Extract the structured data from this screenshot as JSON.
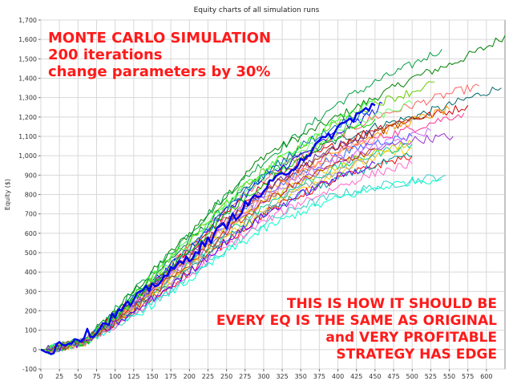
{
  "chart_data": {
    "type": "line",
    "title": "Equity charts of all simulation runs",
    "xlabel": "",
    "ylabel": "Equity ($)",
    "xlim": [
      0,
      625
    ],
    "ylim": [
      -100,
      1700
    ],
    "x_ticks": [
      0,
      25,
      50,
      75,
      100,
      125,
      150,
      175,
      200,
      225,
      250,
      275,
      300,
      325,
      350,
      375,
      400,
      425,
      450,
      475,
      500,
      525,
      550,
      575,
      600
    ],
    "x_tick_labels": [
      "0",
      "25",
      "50",
      "75",
      "100",
      "125",
      "150",
      "175",
      "200",
      "225",
      "250",
      "275",
      "300",
      "325",
      "350",
      "375",
      "400",
      "425",
      "450",
      "475",
      "500",
      "525",
      "550",
      "575",
      "600"
    ],
    "y_ticks": [
      -100,
      0,
      100,
      200,
      300,
      400,
      500,
      600,
      700,
      800,
      900,
      1000,
      1100,
      1200,
      1300,
      1400,
      1500,
      1600,
      1700
    ],
    "y_tick_labels": [
      "-100",
      "0",
      "100",
      "200",
      "300",
      "400",
      "500",
      "600",
      "700",
      "800",
      "900",
      "1,000",
      "1,100",
      "1,200",
      "1,300",
      "1,400",
      "1,500",
      "1,600",
      "1,700"
    ],
    "grid": true,
    "series_count": 200,
    "series": [
      {
        "color": "#008000",
        "x": [
          0,
          10,
          60,
          125,
          200,
          250,
          300,
          350,
          400,
          450,
          500,
          550,
          600,
          625
        ],
        "y": [
          0,
          0,
          40,
          300,
          600,
          800,
          1000,
          1100,
          1200,
          1300,
          1400,
          1470,
          1560,
          1620
        ]
      },
      {
        "color": "#006666",
        "x": [
          0,
          10,
          60,
          125,
          200,
          250,
          300,
          350,
          400,
          450,
          500,
          550,
          600,
          620
        ],
        "y": [
          0,
          0,
          40,
          280,
          560,
          740,
          900,
          1000,
          1080,
          1150,
          1200,
          1260,
          1330,
          1350
        ]
      },
      {
        "color": "#00a040",
        "x": [
          0,
          10,
          60,
          125,
          200,
          250,
          300,
          350,
          400,
          450,
          500,
          540
        ],
        "y": [
          0,
          0,
          50,
          300,
          600,
          800,
          970,
          1120,
          1270,
          1380,
          1470,
          1550
        ]
      },
      {
        "color": "#ff6060",
        "x": [
          0,
          10,
          60,
          125,
          200,
          250,
          300,
          350,
          400,
          450,
          500,
          550,
          590
        ],
        "y": [
          0,
          0,
          40,
          260,
          530,
          720,
          880,
          1000,
          1100,
          1200,
          1260,
          1320,
          1360
        ]
      },
      {
        "color": "#cc0000",
        "x": [
          0,
          10,
          60,
          125,
          200,
          250,
          300,
          350,
          400,
          450,
          500,
          550,
          575
        ],
        "y": [
          0,
          0,
          40,
          260,
          520,
          700,
          850,
          970,
          1060,
          1140,
          1190,
          1230,
          1260
        ]
      },
      {
        "color": "#ff3399",
        "x": [
          0,
          10,
          60,
          125,
          200,
          250,
          300,
          350,
          400,
          450,
          500,
          550,
          570
        ],
        "y": [
          0,
          0,
          40,
          240,
          500,
          680,
          820,
          930,
          1020,
          1090,
          1140,
          1200,
          1220
        ]
      },
      {
        "color": "#9933cc",
        "x": [
          0,
          10,
          60,
          125,
          200,
          250,
          300,
          350,
          400,
          450,
          500,
          555
        ],
        "y": [
          0,
          0,
          40,
          220,
          450,
          620,
          760,
          870,
          960,
          1030,
          1080,
          1100
        ]
      },
      {
        "color": "#33cccc",
        "x": [
          0,
          10,
          60,
          125,
          200,
          250,
          300,
          350,
          400,
          450,
          500,
          545
        ],
        "y": [
          0,
          0,
          40,
          180,
          370,
          520,
          650,
          740,
          800,
          840,
          870,
          900
        ]
      },
      {
        "color": "#ff9900",
        "x": [
          0,
          10,
          60,
          125,
          200,
          250,
          300,
          350,
          400,
          450,
          500,
          550
        ],
        "y": [
          0,
          0,
          40,
          230,
          470,
          640,
          800,
          920,
          1020,
          1110,
          1180,
          1240
        ]
      },
      {
        "color": "#0000ff",
        "x": [
          0,
          10,
          60,
          125,
          200,
          250,
          300,
          350,
          400,
          450,
          460
        ],
        "y": [
          0,
          0,
          40,
          250,
          520,
          720,
          880,
          1000,
          1120,
          1230,
          1270
        ]
      },
      {
        "color": "#3366ff",
        "x": [
          0,
          10,
          60,
          125,
          200,
          250,
          300,
          350,
          400,
          450,
          500
        ],
        "y": [
          0,
          0,
          40,
          230,
          470,
          650,
          800,
          910,
          1000,
          1070,
          1100
        ]
      },
      {
        "color": "#66cc00",
        "x": [
          0,
          10,
          60,
          125,
          200,
          250,
          300,
          350,
          400,
          450,
          500,
          530
        ],
        "y": [
          0,
          0,
          40,
          270,
          560,
          760,
          920,
          1050,
          1170,
          1270,
          1330,
          1380
        ]
      },
      {
        "color": "#ffcc00",
        "x": [
          0,
          10,
          60,
          125,
          200,
          250,
          300,
          350,
          400,
          450,
          500
        ],
        "y": [
          0,
          0,
          40,
          200,
          420,
          580,
          720,
          830,
          920,
          990,
          1040
        ]
      },
      {
        "color": "#00cc99",
        "x": [
          0,
          10,
          60,
          125,
          200,
          250,
          300,
          350,
          400,
          450,
          500
        ],
        "y": [
          0,
          0,
          40,
          210,
          440,
          600,
          740,
          850,
          940,
          1010,
          1060
        ]
      },
      {
        "color": "#993300",
        "x": [
          0,
          10,
          60,
          125,
          200,
          250,
          300,
          350,
          400,
          450,
          500,
          520
        ],
        "y": [
          0,
          0,
          40,
          240,
          490,
          670,
          820,
          940,
          1040,
          1120,
          1180,
          1200
        ]
      },
      {
        "color": "#cc66ff",
        "x": [
          0,
          10,
          60,
          125,
          200,
          250,
          300,
          350,
          400,
          450,
          500,
          525
        ],
        "y": [
          0,
          0,
          40,
          220,
          460,
          630,
          780,
          890,
          980,
          1050,
          1100,
          1130
        ]
      },
      {
        "color": "#ff0000",
        "x": [
          0,
          10,
          60,
          125,
          200,
          250,
          300,
          350,
          400,
          450,
          500
        ],
        "y": [
          0,
          0,
          40,
          190,
          400,
          560,
          700,
          800,
          880,
          950,
          1000
        ]
      },
      {
        "color": "#009999",
        "x": [
          0,
          10,
          60,
          125,
          200,
          250,
          300,
          350,
          400,
          450,
          500
        ],
        "y": [
          0,
          0,
          40,
          200,
          410,
          570,
          700,
          800,
          880,
          950,
          1000
        ]
      },
      {
        "color": "#66ff66",
        "x": [
          0,
          10,
          60,
          125,
          200,
          250,
          300,
          350,
          400,
          450,
          500
        ],
        "y": [
          0,
          0,
          40,
          260,
          540,
          730,
          890,
          1020,
          1120,
          1200,
          1270
        ]
      },
      {
        "color": "#ff66cc",
        "x": [
          0,
          10,
          60,
          125,
          200,
          250,
          300,
          350,
          400,
          450,
          500
        ],
        "y": [
          0,
          0,
          40,
          180,
          380,
          530,
          660,
          760,
          840,
          910,
          960
        ]
      },
      {
        "color": "#00ffcc",
        "x": [
          0,
          10,
          60,
          125,
          200,
          250,
          300,
          350,
          400,
          450,
          500,
          540
        ],
        "y": [
          0,
          0,
          40,
          170,
          360,
          500,
          620,
          710,
          780,
          830,
          870,
          880
        ]
      },
      {
        "color": "#cccc00",
        "x": [
          0,
          10,
          60,
          125,
          200,
          250,
          300,
          350,
          400,
          450,
          500
        ],
        "y": [
          0,
          0,
          40,
          220,
          450,
          620,
          760,
          870,
          950,
          1020,
          1070
        ]
      },
      {
        "color": "#0066cc",
        "x": [
          0,
          10,
          60,
          125,
          200,
          250,
          300,
          350,
          400,
          450
        ],
        "y": [
          0,
          0,
          40,
          260,
          520,
          720,
          900,
          1050,
          1160,
          1260
        ]
      },
      {
        "color": "#663399",
        "x": [
          0,
          10,
          60,
          125,
          200,
          250,
          300,
          350,
          400,
          450
        ],
        "y": [
          0,
          0,
          40,
          240,
          480,
          660,
          820,
          950,
          1050,
          1130
        ]
      },
      {
        "color": "#ff9999",
        "x": [
          0,
          10,
          60,
          125,
          200,
          250,
          300,
          350,
          400,
          450
        ],
        "y": [
          0,
          0,
          40,
          230,
          470,
          640,
          790,
          910,
          1010,
          1090
        ]
      },
      {
        "color": "#999999",
        "x": [
          0,
          10,
          60,
          125,
          200,
          250,
          300,
          350,
          400,
          450
        ],
        "y": [
          0,
          0,
          40,
          200,
          420,
          580,
          720,
          830,
          920,
          990
        ]
      },
      {
        "color": "#33ff33",
        "x": [
          0,
          10,
          60,
          125,
          200,
          250,
          300,
          350,
          400,
          450
        ],
        "y": [
          0,
          0,
          40,
          280,
          560,
          760,
          920,
          1060,
          1180,
          1290
        ]
      },
      {
        "color": "#cc3300",
        "x": [
          0,
          10,
          60,
          125,
          200,
          250,
          300,
          350,
          400,
          450
        ],
        "y": [
          0,
          0,
          40,
          210,
          440,
          610,
          760,
          870,
          960,
          1040
        ]
      },
      {
        "color": "#6600ff",
        "x": [
          0,
          10,
          60,
          125,
          200,
          250,
          300,
          350,
          400,
          450
        ],
        "y": [
          0,
          0,
          40,
          190,
          400,
          560,
          690,
          800,
          890,
          960
        ]
      },
      {
        "color": "#00cc00",
        "x": [
          0,
          10,
          60,
          125,
          200,
          250,
          300,
          350,
          400,
          450
        ],
        "y": [
          0,
          0,
          40,
          250,
          510,
          700,
          860,
          990,
          1100,
          1190
        ]
      }
    ],
    "highlight_series": {
      "color": "#0000ee",
      "x": [
        0,
        10,
        25,
        50,
        75,
        100,
        125,
        150,
        175,
        200,
        225,
        250,
        275,
        300,
        325,
        350,
        375,
        400,
        425,
        450
      ],
      "y": [
        0,
        -20,
        30,
        60,
        100,
        180,
        250,
        330,
        400,
        480,
        560,
        650,
        740,
        820,
        900,
        980,
        1060,
        1140,
        1210,
        1260
      ]
    },
    "annotations": [
      {
        "text": "MONTE CARLO SIMULATION",
        "position": "top-left"
      },
      {
        "text": "200 iterations",
        "position": "top-left"
      },
      {
        "text": "change parameters by 30%",
        "position": "top-left"
      },
      {
        "text": "THIS IS HOW IT SHOULD BE",
        "position": "bottom-right"
      },
      {
        "text": "EVERY EQ IS THE SAME AS ORIGINAL",
        "position": "bottom-right"
      },
      {
        "text": "and VERY PROFITABLE",
        "position": "bottom-right"
      },
      {
        "text": "STRATEGY HAS EDGE",
        "position": "bottom-right"
      }
    ]
  }
}
